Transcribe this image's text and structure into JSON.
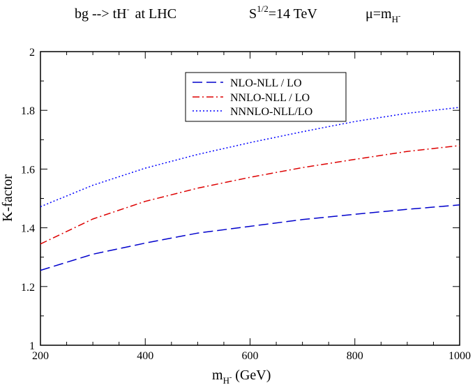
{
  "chart_data": {
    "type": "line",
    "title": {
      "process": "bg --> tH",
      "process_sup": "-",
      "collider": "at  LHC",
      "energy_base": "S",
      "energy_sup": "1/2",
      "energy_rest": "=14 TeV",
      "scale_lhs": "μ=m",
      "scale_sub": "H",
      "scale_subsup": "-"
    },
    "xlabel": {
      "main": "m",
      "sub": "H",
      "subsup": "-",
      "unit": " (GeV)"
    },
    "ylabel": "K-factor",
    "xlim": [
      200,
      1000
    ],
    "ylim": [
      1,
      2
    ],
    "xticks": [
      200,
      400,
      600,
      800,
      1000
    ],
    "xtick_labels": [
      "200",
      "400",
      "600",
      "800",
      "1000"
    ],
    "yticks": [
      1,
      1.2,
      1.4,
      1.6,
      1.8,
      2
    ],
    "ytick_labels": [
      "1",
      "1.2",
      "1.4",
      "1.6",
      "1.8",
      "2"
    ],
    "legend_position": "top-center",
    "series": [
      {
        "name": "NLO-NLL / LO",
        "color": "#0000cc",
        "style": "dashed",
        "x": [
          200,
          300,
          400,
          500,
          600,
          700,
          800,
          900,
          1000
        ],
        "y": [
          1.255,
          1.31,
          1.348,
          1.382,
          1.405,
          1.428,
          1.446,
          1.463,
          1.478
        ]
      },
      {
        "name": "NNLO-NLL / LO",
        "color": "#dd0000",
        "style": "dashdot",
        "x": [
          200,
          300,
          400,
          500,
          600,
          700,
          800,
          900,
          1000
        ],
        "y": [
          1.345,
          1.43,
          1.49,
          1.535,
          1.572,
          1.605,
          1.633,
          1.66,
          1.68
        ]
      },
      {
        "name": "NNNLO-NLL/LO",
        "color": "#0000ff",
        "style": "dotted",
        "x": [
          200,
          300,
          400,
          500,
          600,
          700,
          800,
          900,
          1000
        ],
        "y": [
          1.472,
          1.545,
          1.603,
          1.65,
          1.69,
          1.727,
          1.762,
          1.79,
          1.81
        ]
      }
    ]
  }
}
